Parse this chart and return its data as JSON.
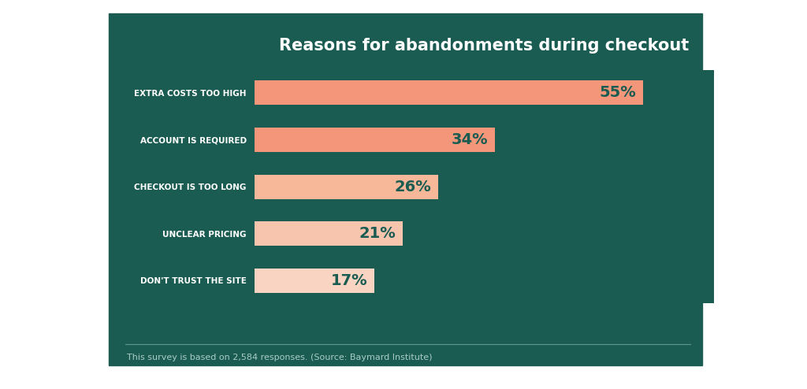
{
  "title": "Reasons for abandonments during checkout",
  "footnote": "This survey is based on 2,584 responses. (Source: Baymard Institute)",
  "categories": [
    "EXTRA COSTS TOO HIGH",
    "ACCOUNT IS REQUIRED",
    "CHECKOUT IS TOO LONG",
    "UNCLEAR PRICING",
    "DON'T TRUST THE SITE"
  ],
  "values": [
    55,
    34,
    26,
    21,
    17
  ],
  "labels": [
    "55%",
    "34%",
    "26%",
    "21%",
    "17%"
  ],
  "bar_colors": [
    "#F4967A",
    "#F4967A",
    "#F7B89A",
    "#F7C4AE",
    "#FAD4C2"
  ],
  "background_color": "#1A5C52",
  "outer_background": "#FFFFFF",
  "text_color_title": "#FFFFFF",
  "text_color_labels": "#1A5C52",
  "text_color_categories": "#FFFFFF",
  "text_color_footnote": "#AACCC7",
  "line_color": "#5A9990",
  "xlim": [
    0,
    65
  ],
  "title_fontsize": 15,
  "category_fontsize": 7.5,
  "label_fontsize": 14,
  "footnote_fontsize": 8,
  "bar_height": 0.52,
  "figsize": [
    10.24,
    4.94
  ],
  "dpi": 100
}
